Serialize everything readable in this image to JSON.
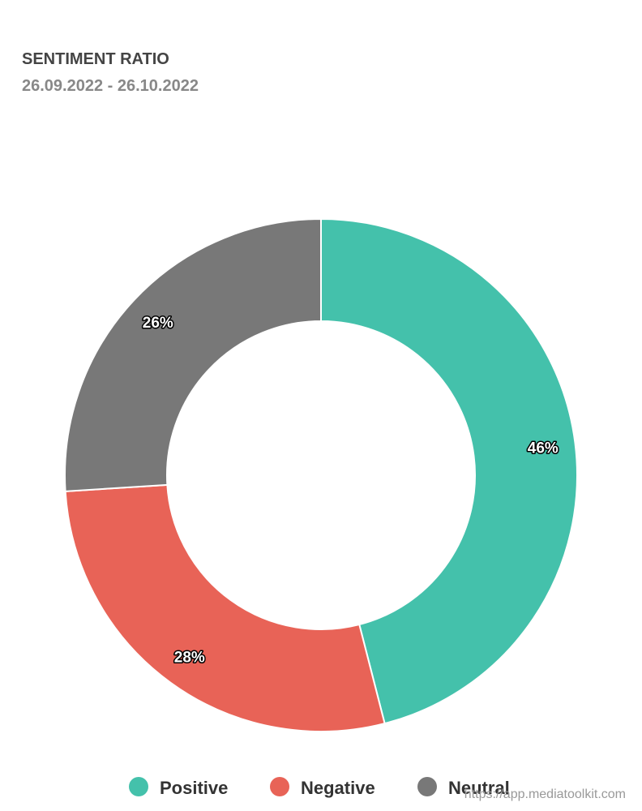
{
  "chart_data": {
    "type": "pie",
    "title": "SENTIMENT RATIO",
    "subtitle": "26.09.2022 - 26.10.2022",
    "categories": [
      "Positive",
      "Negative",
      "Neutral"
    ],
    "values": [
      46,
      28,
      26
    ],
    "value_labels": [
      "46%",
      "28%",
      "26%"
    ],
    "colors": [
      "#44c1ab",
      "#e86357",
      "#787878"
    ],
    "credit": "https://app.mediatoolkit.com"
  }
}
